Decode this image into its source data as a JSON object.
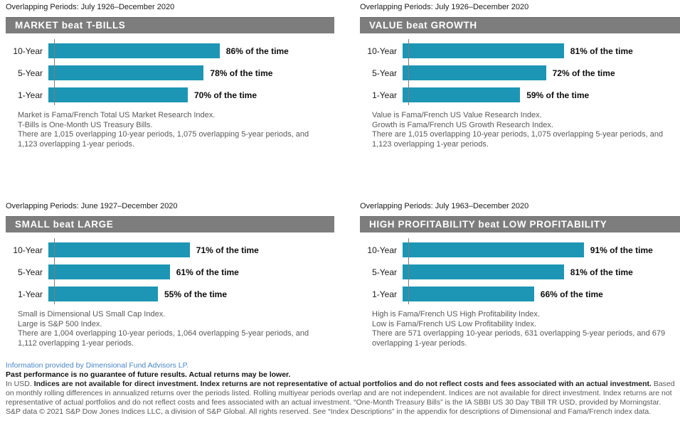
{
  "colors": {
    "bar": "#1c96b4",
    "header_bg": "#7d7d7d",
    "footer_link_blue": "#4a86c8",
    "note_grey": "#595959"
  },
  "chart_data": [
    {
      "id": "market-beat-tbills",
      "type": "bar",
      "orientation": "horizontal",
      "overlapping_periods": "Overlapping Periods: July 1926–December 2020",
      "title": "MARKET beat T-BILLS",
      "categories": [
        "10-Year",
        "5-Year",
        "1-Year"
      ],
      "values": [
        86,
        78,
        70
      ],
      "value_suffix": "% of the time",
      "xlim": [
        0,
        100
      ],
      "grid": false,
      "notes": [
        "Market is Fama/French Total US Market Research Index.",
        "T-Bills is One-Month US Treasury Bills.",
        "There are 1,015 overlapping 10-year periods, 1,075 overlapping 5-year periods, and 1,123 overlapping 1-year periods."
      ]
    },
    {
      "id": "value-beat-growth",
      "type": "bar",
      "orientation": "horizontal",
      "overlapping_periods": "Overlapping Periods: July 1926–December 2020",
      "title": "VALUE beat GROWTH",
      "categories": [
        "10-Year",
        "5-Year",
        "1-Year"
      ],
      "values": [
        81,
        72,
        59
      ],
      "value_suffix": "% of the time",
      "xlim": [
        0,
        100
      ],
      "grid": false,
      "notes": [
        "Value is Fama/French US Value Research Index.",
        "Growth is Fama/French US Growth Research Index.",
        "There are 1,015 overlapping 10-year periods, 1,075 overlapping 5-year periods, and 1,123 overlapping 1-year periods."
      ]
    },
    {
      "id": "small-beat-large",
      "type": "bar",
      "orientation": "horizontal",
      "overlapping_periods": "Overlapping Periods: June 1927–December 2020",
      "title": "SMALL beat LARGE",
      "categories": [
        "10-Year",
        "5-Year",
        "1-Year"
      ],
      "values": [
        71,
        61,
        55
      ],
      "value_suffix": "% of the time",
      "xlim": [
        0,
        100
      ],
      "grid": false,
      "notes": [
        "Small is Dimensional US Small Cap Index.",
        "Large is S&P 500 Index.",
        "There are 1,004 overlapping 10-year periods, 1,064 overlapping 5-year periods, and 1,112 overlapping 1-year periods."
      ]
    },
    {
      "id": "high-profitability-beat-low-profitability",
      "type": "bar",
      "orientation": "horizontal",
      "overlapping_periods": "Overlapping Periods: July 1963–December 2020",
      "title": "HIGH PROFITABILITY beat LOW PROFITABILITY",
      "categories": [
        "10-Year",
        "5-Year",
        "1-Year"
      ],
      "values": [
        91,
        81,
        66
      ],
      "value_suffix": "% of the time",
      "xlim": [
        0,
        100
      ],
      "grid": false,
      "notes": [
        "High is Fama/French US High Profitability Index.",
        "Low is Fama/French US Low Profitability Index.",
        "There are 571 overlapping 10-year periods, 631 overlapping 5-year periods, and 679 overlapping 1-year periods."
      ]
    }
  ],
  "footer": {
    "provider": "Information provided by Dimensional Fund Advisors LP.",
    "past_performance": "Past performance is no guarantee of future results. Actual returns may be lower.",
    "legal_prefix": "In USD. ",
    "legal_bold": "Indices are not available for direct investment. Index returns are not representative of actual portfolios and do not reflect costs and fees associated with an actual investment.",
    "legal_rest": " Based on monthly rolling differences in annualized returns over the periods listed. Rolling multiyear periods overlap and are not independent. Indices are not available for direct investment. Index returns are not representative of actual portfolios and do not reflect costs and fees associated with an actual investment. “One-Month Treasury Bills” is the IA SBBI US 30 Day TBill TR USD, provided by Morningstar. S&P data © 2021 S&P Dow Jones Indices LLC, a division of S&P Global. All rights reserved. See “Index Descriptions” in the appendix for descriptions of Dimensional and Fama/French index data."
  }
}
